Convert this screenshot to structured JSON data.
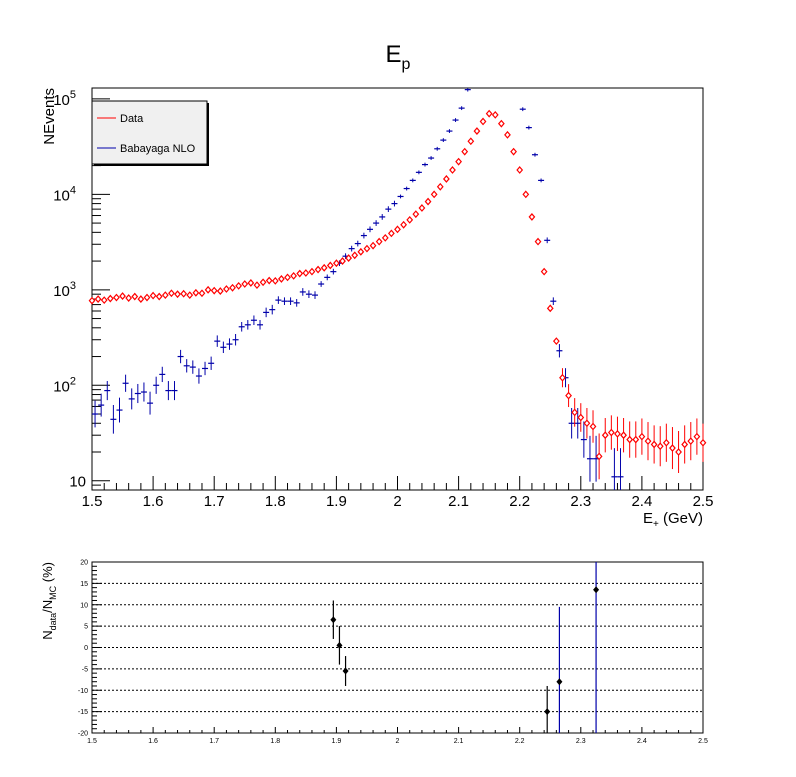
{
  "colors": {
    "data": "#ff0000",
    "mc": "#0000aa",
    "ratio_marker": "#000000",
    "ratio_err": "#000000",
    "ratio_big_err": "#0000aa"
  },
  "chart_data": [
    {
      "type": "scatter",
      "title": "E",
      "title_sub": "p",
      "ylabel": "NEvents",
      "xlabel": "E",
      "xlabel_sub": "+",
      "xlabel_unit": " (GeV)",
      "xlim": [
        1.5,
        2.5
      ],
      "ylim": [
        8,
        130000
      ],
      "yscale": "log",
      "grid": false,
      "legend_position": "top-left",
      "x_ticks": [
        {
          "v": 1.5,
          "label": "1.5"
        },
        {
          "v": 1.6,
          "label": "1.6"
        },
        {
          "v": 1.7,
          "label": "1.7"
        },
        {
          "v": 1.8,
          "label": "1.8"
        },
        {
          "v": 1.9,
          "label": "1.9"
        },
        {
          "v": 2.0,
          "label": "2"
        },
        {
          "v": 2.1,
          "label": "2.1"
        },
        {
          "v": 2.2,
          "label": "2.2"
        },
        {
          "v": 2.3,
          "label": "2.3"
        },
        {
          "v": 2.4,
          "label": "2.4"
        },
        {
          "v": 2.5,
          "label": "2.5"
        }
      ],
      "y_ticks": [
        {
          "v": 10,
          "label": "10"
        },
        {
          "v": 100,
          "label": "10",
          "exp": "2"
        },
        {
          "v": 1000,
          "label": "10",
          "exp": "3"
        },
        {
          "v": 10000,
          "label": "10",
          "exp": "4"
        },
        {
          "v": 100000,
          "label": "10",
          "exp": "5"
        }
      ],
      "series": [
        {
          "name": "Data",
          "marker": "open-diamond",
          "x": [
            1.5,
            1.51,
            1.52,
            1.53,
            1.54,
            1.55,
            1.56,
            1.57,
            1.58,
            1.59,
            1.6,
            1.61,
            1.62,
            1.63,
            1.64,
            1.65,
            1.66,
            1.67,
            1.68,
            1.69,
            1.7,
            1.71,
            1.72,
            1.73,
            1.74,
            1.75,
            1.76,
            1.77,
            1.78,
            1.79,
            1.8,
            1.81,
            1.82,
            1.83,
            1.84,
            1.85,
            1.86,
            1.87,
            1.88,
            1.89,
            1.9,
            1.91,
            1.92,
            1.93,
            1.94,
            1.95,
            1.96,
            1.97,
            1.98,
            1.99,
            2.0,
            2.01,
            2.02,
            2.03,
            2.04,
            2.05,
            2.06,
            2.07,
            2.08,
            2.09,
            2.1,
            2.11,
            2.12,
            2.13,
            2.14,
            2.15,
            2.16,
            2.17,
            2.18,
            2.19,
            2.2,
            2.21,
            2.22,
            2.23,
            2.24,
            2.25,
            2.26,
            2.27,
            2.28,
            2.29,
            2.3,
            2.31,
            2.32,
            2.33,
            2.34,
            2.35,
            2.36,
            2.37,
            2.38,
            2.39,
            2.4,
            2.41,
            2.42,
            2.43,
            2.44,
            2.45,
            2.46,
            2.47,
            2.48,
            2.49,
            2.5
          ],
          "y": [
            770,
            800,
            780,
            810,
            830,
            860,
            820,
            850,
            800,
            830,
            870,
            850,
            880,
            920,
            900,
            910,
            880,
            930,
            920,
            1000,
            980,
            970,
            1020,
            1050,
            1100,
            1150,
            1180,
            1120,
            1200,
            1250,
            1240,
            1300,
            1350,
            1400,
            1480,
            1500,
            1550,
            1630,
            1700,
            1800,
            1900,
            2000,
            2150,
            2300,
            2500,
            2700,
            2900,
            3200,
            3500,
            3900,
            4300,
            4800,
            5400,
            6200,
            7200,
            8400,
            10000,
            12000,
            14500,
            18000,
            22000,
            28000,
            36000,
            46000,
            58000,
            70000,
            68000,
            55000,
            42000,
            28000,
            18000,
            10000,
            5800,
            3200,
            1550,
            640,
            290,
            120,
            78,
            52,
            46,
            40,
            37,
            18,
            30,
            32,
            31,
            30,
            27,
            27,
            29,
            26,
            24,
            23,
            25,
            22,
            20,
            24,
            26,
            29,
            25
          ],
          "errors": [
            0.07,
            0.07,
            0.07,
            0.07,
            0.07,
            0.07,
            0.07,
            0.07,
            0.07,
            0.07,
            0.07,
            0.07,
            0.07,
            0.07,
            0.07,
            0.07,
            0.07,
            0.07,
            0.07,
            0.07,
            0.07,
            0.07,
            0.07,
            0.07,
            0.07,
            0.07,
            0.07,
            0.07,
            0.07,
            0.07,
            0.07,
            0.07,
            0.07,
            0.07,
            0.07,
            0.07,
            0.07,
            0.07,
            0.07,
            0.07,
            0.07,
            0.07,
            0.07,
            0.07,
            0.07,
            0.07,
            0.07,
            0.07,
            0.07,
            0.07,
            0.07,
            0.07,
            0.07,
            0.07,
            0.07,
            0.07,
            0.07,
            0.07,
            0.07,
            0.07,
            0.07,
            0.07,
            0.07,
            0.07,
            0.07,
            0.07,
            0.07,
            0.07,
            0.07,
            0.07,
            0.07,
            0.07,
            0.07,
            0.07,
            0.07,
            0.07,
            0.07,
            0.1,
            0.12,
            0.15,
            0.15,
            0.16,
            0.17,
            0.24,
            0.18,
            0.18,
            0.18,
            0.18,
            0.19,
            0.19,
            0.19,
            0.2,
            0.2,
            0.21,
            0.2,
            0.22,
            0.22,
            0.2,
            0.2,
            0.19,
            0.2
          ]
        },
        {
          "name": "Babayaga NLO",
          "marker": "cross",
          "x": [
            1.505,
            1.515,
            1.525,
            1.535,
            1.545,
            1.555,
            1.565,
            1.575,
            1.585,
            1.595,
            1.605,
            1.615,
            1.625,
            1.635,
            1.645,
            1.655,
            1.665,
            1.675,
            1.685,
            1.695,
            1.705,
            1.715,
            1.725,
            1.735,
            1.745,
            1.755,
            1.765,
            1.775,
            1.785,
            1.795,
            1.805,
            1.815,
            1.825,
            1.835,
            1.845,
            1.855,
            1.865,
            1.875,
            1.885,
            1.895,
            1.905,
            1.915,
            1.925,
            1.935,
            1.945,
            1.955,
            1.965,
            1.975,
            1.985,
            1.995,
            2.005,
            2.015,
            2.025,
            2.035,
            2.045,
            2.055,
            2.065,
            2.075,
            2.085,
            2.095,
            2.105,
            2.115,
            2.205,
            2.215,
            2.225,
            2.235,
            2.245,
            2.255,
            2.265,
            2.275,
            2.285,
            2.295,
            2.305,
            2.315,
            2.325,
            2.355,
            2.365
          ],
          "y": [
            50,
            62,
            88,
            44,
            55,
            105,
            72,
            82,
            85,
            65,
            100,
            130,
            88,
            88,
            200,
            160,
            155,
            125,
            150,
            170,
            290,
            250,
            270,
            300,
            410,
            430,
            480,
            430,
            580,
            620,
            780,
            760,
            760,
            730,
            950,
            900,
            880,
            1150,
            1350,
            1550,
            1900,
            2250,
            2700,
            3050,
            3700,
            4300,
            5000,
            5800,
            7000,
            8000,
            9500,
            11500,
            14000,
            17000,
            20500,
            24000,
            30000,
            37000,
            46000,
            60000,
            80000,
            125000,
            78000,
            50000,
            26000,
            14000,
            3300,
            760,
            230,
            120,
            40,
            40,
            27,
            17,
            17,
            11,
            11
          ],
          "errors": [
            0.14,
            0.12,
            0.1,
            0.15,
            0.13,
            0.09,
            0.11,
            0.1,
            0.1,
            0.12,
            0.09,
            0.08,
            0.1,
            0.1,
            0.07,
            0.07,
            0.07,
            0.08,
            0.07,
            0.07,
            0.06,
            0.06,
            0.06,
            0.06,
            0.05,
            0.05,
            0.05,
            0.05,
            0.05,
            0.05,
            0.04,
            0.04,
            0.04,
            0.04,
            0.04,
            0.04,
            0.04,
            0.03,
            0.03,
            0.03,
            0.03,
            0.03,
            0.03,
            0.03,
            0.03,
            0.03,
            0.03,
            0.03,
            0.03,
            0.03,
            0.02,
            0.02,
            0.02,
            0.02,
            0.02,
            0.02,
            0.02,
            0.02,
            0.02,
            0.02,
            0.02,
            0.02,
            0.02,
            0.02,
            0.02,
            0.02,
            0.03,
            0.04,
            0.07,
            0.1,
            0.16,
            0.16,
            0.19,
            0.24,
            0.24,
            0.3,
            0.3
          ]
        }
      ]
    },
    {
      "type": "scatter",
      "ylabel": "N",
      "ylabel_sub1": "data",
      "ylabel_mid": "/N",
      "ylabel_sub2": "MC",
      "ylabel_unit": " (%)",
      "xlim": [
        1.5,
        2.5
      ],
      "ylim": [
        -20,
        20
      ],
      "grid": true,
      "x_ticks": [
        {
          "v": 1.5,
          "label": "1.5"
        },
        {
          "v": 1.6,
          "label": "1.6"
        },
        {
          "v": 1.7,
          "label": "1.7"
        },
        {
          "v": 1.8,
          "label": "1.8"
        },
        {
          "v": 1.9,
          "label": "1.9"
        },
        {
          "v": 2.0,
          "label": "2"
        },
        {
          "v": 2.1,
          "label": "2.1"
        },
        {
          "v": 2.2,
          "label": "2.2"
        },
        {
          "v": 2.3,
          "label": "2.3"
        },
        {
          "v": 2.4,
          "label": "2.4"
        },
        {
          "v": 2.5,
          "label": "2.5"
        }
      ],
      "y_ticks": [
        {
          "v": -20,
          "label": "-20"
        },
        {
          "v": -15,
          "label": "-15"
        },
        {
          "v": -10,
          "label": "-10"
        },
        {
          "v": -5,
          "label": "-5"
        },
        {
          "v": 0,
          "label": "0"
        },
        {
          "v": 5,
          "label": "5"
        },
        {
          "v": 10,
          "label": "10"
        },
        {
          "v": 15,
          "label": "15"
        },
        {
          "v": 20,
          "label": "20"
        }
      ],
      "points": [
        {
          "x": 1.895,
          "y": 6.5,
          "err": 4.5,
          "wide": false
        },
        {
          "x": 1.905,
          "y": 0.5,
          "err": 4.5,
          "wide": false
        },
        {
          "x": 1.915,
          "y": -5.5,
          "err": 3.5,
          "wide": false
        },
        {
          "x": 2.245,
          "y": -15.0,
          "err": 6.0,
          "wide": false
        },
        {
          "x": 2.265,
          "y": -8.0,
          "err": 17.5,
          "wide": true
        },
        {
          "x": 2.325,
          "y": 13.5,
          "err": 33.5,
          "wide": true
        }
      ]
    }
  ]
}
